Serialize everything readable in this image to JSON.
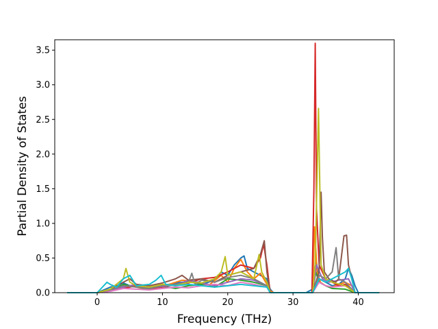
{
  "chart_data": {
    "type": "line",
    "title": "",
    "xlabel": "Frequency (THz)",
    "ylabel": "Partial Density of States",
    "xlim": [
      -6.5,
      45.5
    ],
    "ylim": [
      0,
      3.65
    ],
    "xticks": [
      0,
      10,
      20,
      30,
      40
    ],
    "xtick_labels": [
      "0",
      "10",
      "20",
      "30",
      "40"
    ],
    "yticks": [
      0,
      0.5,
      1.0,
      1.5,
      2.0,
      2.5,
      3.0,
      3.5
    ],
    "ytick_labels": [
      "0.0",
      "0.5",
      "1.0",
      "1.5",
      "2.0",
      "2.5",
      "3.0",
      "3.5"
    ],
    "grid": false,
    "legend": "none",
    "colors": [
      "#1f77b4",
      "#ff7f0e",
      "#2ca02c",
      "#d62728",
      "#9467bd",
      "#8c564b",
      "#e377c2",
      "#7f7f7f",
      "#bcbd22",
      "#17becf"
    ],
    "series": [
      {
        "color": "#1f77b4",
        "x": [
          -4.6,
          0,
          1,
          2,
          3,
          4,
          5,
          6,
          8,
          10,
          12,
          14,
          16,
          18,
          19,
          20,
          21,
          22,
          22.5,
          23,
          24,
          25,
          26,
          26.5,
          27,
          32,
          33,
          33.5,
          34,
          35,
          36,
          37,
          38,
          38.5,
          39,
          39.5,
          40,
          43.2
        ],
        "y": [
          0,
          0,
          0.04,
          0.08,
          0.1,
          0.14,
          0.1,
          0.09,
          0.07,
          0.1,
          0.14,
          0.16,
          0.12,
          0.18,
          0.3,
          0.25,
          0.4,
          0.5,
          0.53,
          0.35,
          0.3,
          0.25,
          0.2,
          0.05,
          0,
          0,
          0.05,
          0.5,
          0.2,
          0.15,
          0.1,
          0.12,
          0.2,
          0.35,
          0.25,
          0.1,
          0,
          0
        ]
      },
      {
        "color": "#ff7f0e",
        "x": [
          -4.6,
          0,
          1,
          2,
          4,
          5,
          7,
          9,
          11,
          13,
          15,
          17,
          19,
          20,
          21,
          22,
          23,
          24,
          25,
          26,
          26.5,
          27,
          33,
          33.3,
          33.7,
          34.2,
          35,
          36,
          37,
          38,
          39,
          39.5,
          43.2
        ],
        "y": [
          0,
          0,
          0.02,
          0.05,
          0.08,
          0.1,
          0.06,
          0.08,
          0.12,
          0.18,
          0.16,
          0.1,
          0.25,
          0.15,
          0.35,
          0.48,
          0.3,
          0.2,
          0.28,
          0.12,
          0.03,
          0,
          0,
          0.95,
          0.3,
          0.15,
          0.1,
          0.08,
          0.12,
          0.15,
          0.1,
          0,
          0
        ]
      },
      {
        "color": "#2ca02c",
        "x": [
          -4.6,
          0,
          2,
          4,
          6,
          8,
          10,
          12,
          14,
          16,
          18,
          20,
          22,
          24,
          26,
          26.5,
          33,
          33.5,
          34,
          35,
          36,
          38,
          39.5,
          43.2
        ],
        "y": [
          0,
          0,
          0.03,
          0.12,
          0.08,
          0.05,
          0.09,
          0.06,
          0.1,
          0.12,
          0.08,
          0.2,
          0.18,
          0.15,
          0.1,
          0,
          0,
          0.3,
          0.15,
          0.1,
          0.06,
          0.05,
          0,
          0
        ]
      },
      {
        "color": "#d62728",
        "x": [
          -4.6,
          0,
          2,
          4,
          6,
          8,
          10,
          12,
          14,
          16,
          18,
          20,
          22,
          24,
          25,
          25.5,
          26,
          26.5,
          32.9,
          33.2,
          33.4,
          33.6,
          34,
          35,
          36,
          37,
          38,
          39.5,
          43.2
        ],
        "y": [
          0,
          0,
          0.04,
          0.06,
          0.1,
          0.06,
          0.08,
          0.12,
          0.14,
          0.2,
          0.22,
          0.3,
          0.4,
          0.35,
          0.5,
          0.7,
          0.4,
          0,
          0,
          1.5,
          3.6,
          1.2,
          0.4,
          0.2,
          0.15,
          0.1,
          0.12,
          0,
          0
        ]
      },
      {
        "color": "#9467bd",
        "x": [
          -4.6,
          0,
          2,
          4,
          6,
          8,
          10,
          12,
          14,
          16,
          18,
          20,
          22,
          24,
          26,
          26.5,
          33,
          33.6,
          34.5,
          35.5,
          37,
          38.5,
          39.5,
          43.2
        ],
        "y": [
          0,
          0,
          0.03,
          0.08,
          0.12,
          0.07,
          0.09,
          0.11,
          0.18,
          0.14,
          0.1,
          0.15,
          0.2,
          0.18,
          0.1,
          0,
          0,
          0.4,
          0.2,
          0.15,
          0.18,
          0.2,
          0,
          0
        ]
      },
      {
        "color": "#8c564b",
        "x": [
          -4.6,
          0,
          2,
          4,
          5,
          6,
          8,
          10,
          12,
          13,
          14,
          16,
          18,
          20,
          22,
          24,
          25,
          25.6,
          26,
          26.5,
          33,
          34,
          34.3,
          34.5,
          34.8,
          35.5,
          36.5,
          37,
          37.8,
          38.2,
          38.5,
          39,
          39.5,
          43.2
        ],
        "y": [
          0,
          0,
          0.05,
          0.15,
          0.2,
          0.12,
          0.1,
          0.14,
          0.2,
          0.25,
          0.18,
          0.2,
          0.15,
          0.25,
          0.3,
          0.35,
          0.55,
          0.75,
          0.3,
          0,
          0,
          0.3,
          1.45,
          0.8,
          0.3,
          0.2,
          0.15,
          0.2,
          0.82,
          0.83,
          0.4,
          0.2,
          0,
          0
        ]
      },
      {
        "color": "#e377c2",
        "x": [
          -4.6,
          0,
          2,
          4,
          6,
          8,
          10,
          12,
          14,
          16,
          18,
          20,
          22,
          24,
          26,
          26.5,
          33,
          34,
          35,
          36,
          38,
          39.5,
          43.2
        ],
        "y": [
          0,
          0,
          0.02,
          0.06,
          0.05,
          0.04,
          0.06,
          0.08,
          0.07,
          0.1,
          0.12,
          0.1,
          0.15,
          0.12,
          0.08,
          0,
          0,
          0.15,
          0.1,
          0.08,
          0.1,
          0,
          0
        ]
      },
      {
        "color": "#7f7f7f",
        "x": [
          -4.6,
          0,
          2,
          4,
          6,
          8,
          10,
          12,
          14,
          14.5,
          15,
          16,
          18,
          20,
          22,
          24,
          26,
          26.5,
          33,
          34,
          35,
          36,
          36.6,
          37,
          38,
          39.5,
          43.2
        ],
        "y": [
          0,
          0,
          0.04,
          0.1,
          0.08,
          0.06,
          0.1,
          0.12,
          0.15,
          0.28,
          0.12,
          0.18,
          0.15,
          0.22,
          0.25,
          0.2,
          0.1,
          0,
          0,
          0.25,
          0.2,
          0.3,
          0.65,
          0.2,
          0.15,
          0,
          0
        ]
      },
      {
        "color": "#bcbd22",
        "x": [
          -4.6,
          0,
          2,
          4,
          4.4,
          5,
          6,
          8,
          10,
          12,
          14,
          16,
          18,
          19,
          19.6,
          20,
          22,
          24,
          24.8,
          25.2,
          26,
          26.5,
          33,
          33.4,
          33.9,
          34.3,
          35,
          36,
          38,
          39.5,
          43.2
        ],
        "y": [
          0,
          0,
          0.05,
          0.2,
          0.35,
          0.15,
          0.1,
          0.08,
          0.12,
          0.1,
          0.15,
          0.14,
          0.2,
          0.3,
          0.52,
          0.25,
          0.3,
          0.2,
          0.55,
          0.3,
          0.15,
          0,
          0,
          0.4,
          2.66,
          0.4,
          0.2,
          0.15,
          0.1,
          0,
          0
        ]
      },
      {
        "color": "#17becf",
        "x": [
          -4.6,
          0,
          1,
          1.5,
          2,
          3,
          4,
          5,
          6,
          8,
          9,
          9.8,
          10.5,
          12,
          14,
          16,
          18,
          20,
          22,
          24,
          26,
          26.5,
          33,
          33.5,
          34,
          35,
          36,
          37,
          38,
          38.5,
          39,
          39.5,
          43.2
        ],
        "y": [
          0,
          0,
          0.1,
          0.15,
          0.12,
          0.08,
          0.2,
          0.25,
          0.1,
          0.12,
          0.18,
          0.25,
          0.12,
          0.1,
          0.12,
          0.1,
          0.08,
          0.1,
          0.12,
          0.1,
          0.08,
          0,
          0,
          0.1,
          0.2,
          0.15,
          0.2,
          0.25,
          0.3,
          0.35,
          0.2,
          0,
          0
        ]
      }
    ]
  }
}
